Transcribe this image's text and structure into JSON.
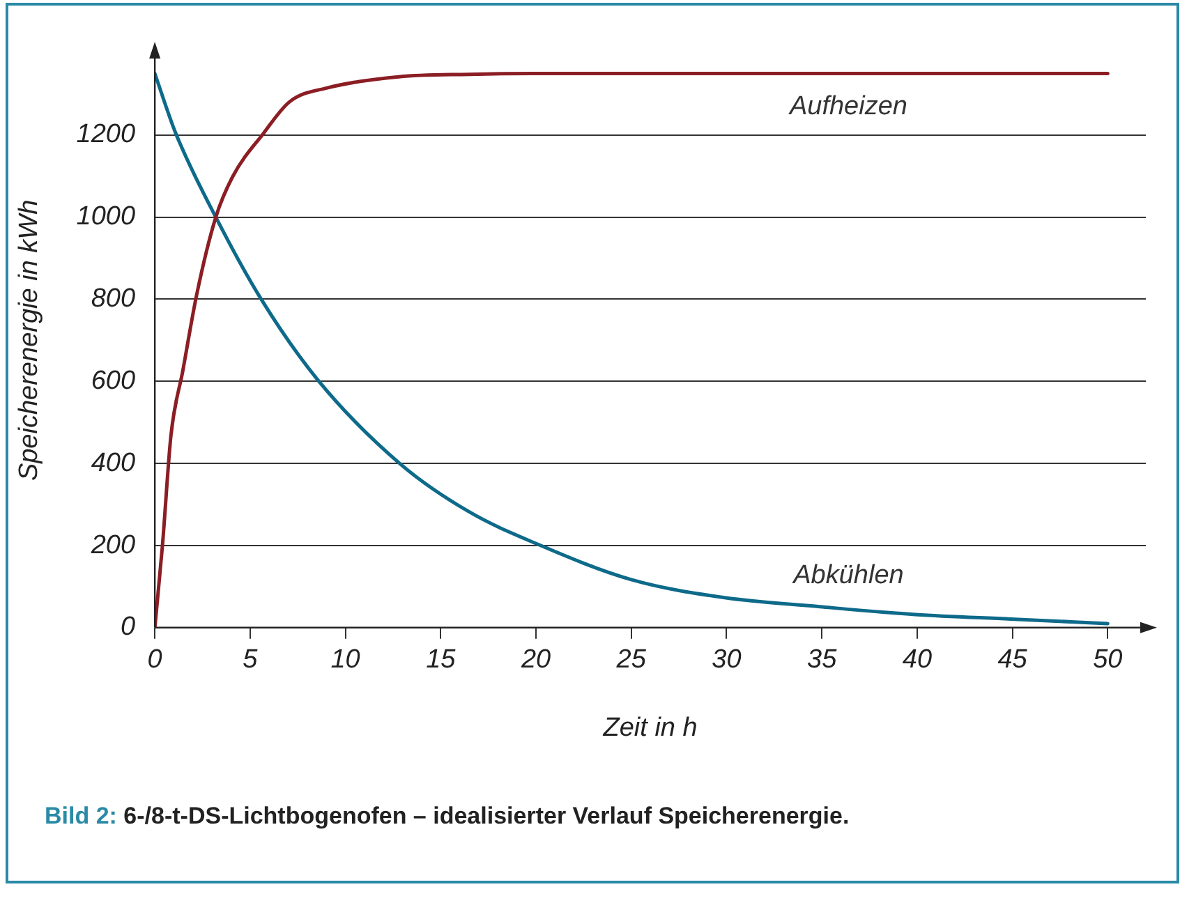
{
  "chart_data": {
    "type": "line",
    "title": "Bild 2: 6-/8-t-DS-Lichtbogenofen – idealisierter Verlauf Speicherenergie.",
    "xlabel": "Zeit in h",
    "ylabel": "Speicherenergie in kWh",
    "series": [
      {
        "name": "Aufheizen",
        "color": "#8b1e24",
        "x": [
          0,
          0.4,
          0.85,
          1.47,
          2.2,
          3.2,
          4.1,
          5.7,
          7.07,
          9.05,
          12.8,
          16.5,
          20,
          30,
          40,
          50
        ],
        "values": [
          0,
          200,
          470,
          626,
          812,
          1000,
          1100,
          1204,
          1281,
          1315,
          1342,
          1348,
          1350,
          1350,
          1350,
          1350
        ]
      },
      {
        "name": "Abkühlen",
        "color": "#0e6a8a",
        "x": [
          0,
          1.1,
          3.2,
          5.57,
          8.56,
          12.9,
          16.5,
          20,
          25,
          29.9,
          34.9,
          39.9,
          44.9,
          50
        ],
        "values": [
          1350,
          1204,
          1000,
          801,
          603,
          398,
          282,
          205,
          117,
          73,
          51,
          32,
          21,
          10
        ]
      }
    ],
    "xlim": [
      0,
      52
    ],
    "xticks": [
      0,
      5,
      10,
      15,
      20,
      25,
      30,
      35,
      40,
      45,
      50
    ],
    "ylim": [
      0,
      1400
    ],
    "yticks": [
      0,
      200,
      400,
      600,
      800,
      1000,
      1200
    ],
    "grid": "y",
    "marker": "none",
    "line_style": "solid",
    "legend": false
  }
}
